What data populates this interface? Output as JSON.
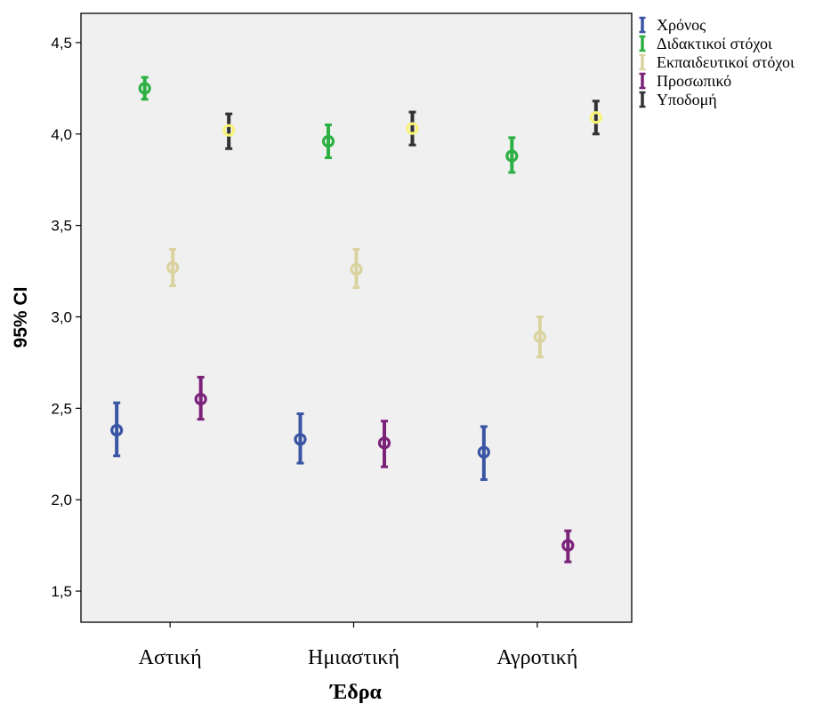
{
  "chart_data": {
    "type": "scatter",
    "subtype": "error-bar",
    "xlabel": "Έδρα",
    "ylabel": "95% CI",
    "categories": [
      "Αστική",
      "Ημιαστική",
      "Αγροτική"
    ],
    "ylim": [
      1.33,
      4.66
    ],
    "yticks": [
      1.5,
      2.0,
      2.5,
      3.0,
      3.5,
      4.0,
      4.5
    ],
    "ytick_labels": [
      "1,5",
      "2,0",
      "2,5",
      "3,0",
      "3,5",
      "4,0",
      "4,5"
    ],
    "grid": false,
    "legend_position": "right",
    "series": [
      {
        "name": "Χρόνος",
        "color": "#3a55a4",
        "mean": [
          2.38,
          2.33,
          2.26
        ],
        "lower": [
          2.24,
          2.2,
          2.11
        ],
        "upper": [
          2.53,
          2.47,
          2.4
        ]
      },
      {
        "name": "Διδακτικοί στόχοι",
        "color": "#2db043",
        "mean": [
          4.25,
          3.96,
          3.88
        ],
        "lower": [
          4.19,
          3.87,
          3.79
        ],
        "upper": [
          4.31,
          4.05,
          3.98
        ]
      },
      {
        "name": "Εκπαιδευτικοί στόχοι",
        "color": "#dad3a0",
        "mean": [
          3.27,
          3.26,
          2.89
        ],
        "lower": [
          3.17,
          3.16,
          2.78
        ],
        "upper": [
          3.37,
          3.37,
          3.0
        ]
      },
      {
        "name": "Προσωπικό",
        "color": "#7b2279",
        "mean": [
          2.55,
          2.31,
          1.75
        ],
        "lower": [
          2.44,
          2.18,
          1.66
        ],
        "upper": [
          2.67,
          2.43,
          1.83
        ]
      },
      {
        "name": "Υποδομή",
        "color": "#333333",
        "marker_color": "#f8f478",
        "mean": [
          4.02,
          4.03,
          4.09
        ],
        "lower": [
          3.92,
          3.94,
          4.0
        ],
        "upper": [
          4.11,
          4.12,
          4.18
        ]
      }
    ]
  }
}
